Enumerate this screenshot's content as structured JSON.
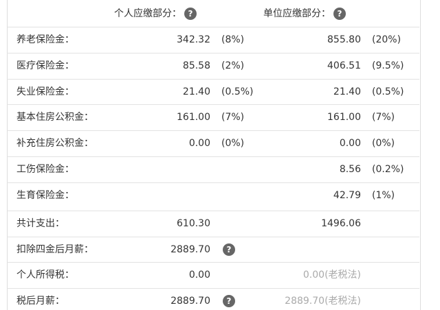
{
  "help_icon": "?",
  "header": {
    "personal": "个人应缴部分：",
    "company": "单位应缴部分："
  },
  "rows": [
    {
      "label": "养老保险金：",
      "personal": "342.32",
      "personal_rate": "(8%)",
      "company": "855.80",
      "company_rate": "(20%)"
    },
    {
      "label": "医疗保险金：",
      "personal": "85.58",
      "personal_rate": "(2%)",
      "company": "406.51",
      "company_rate": "(9.5%)"
    },
    {
      "label": "失业保险金：",
      "personal": "21.40",
      "personal_rate": "(0.5%)",
      "company": "21.40",
      "company_rate": "(0.5%)"
    },
    {
      "label": "基本住房公积金：",
      "personal": "161.00",
      "personal_rate": "(7%)",
      "company": "161.00",
      "company_rate": "(7%)"
    },
    {
      "label": "补充住房公积金：",
      "personal": "0.00",
      "personal_rate": "(0%)",
      "company": "0.00",
      "company_rate": "(0%)"
    },
    {
      "label": "工伤保险金：",
      "company": "8.56",
      "company_rate": "(0.2%)"
    },
    {
      "label": "生育保险金：",
      "company": "42.79",
      "company_rate": "(1%)"
    }
  ],
  "summary": [
    {
      "label": "共计支出：",
      "personal": "610.30",
      "company": "1496.06"
    },
    {
      "label": "扣除四金后月薪：",
      "personal": "2889.70",
      "help": true
    },
    {
      "label": "个人所得税：",
      "personal": "0.00",
      "old_tax": "0.00(老税法)"
    },
    {
      "label": "税后月薪：",
      "personal": "2889.70",
      "help": true,
      "old_tax": "2889.70(老税法)"
    }
  ]
}
